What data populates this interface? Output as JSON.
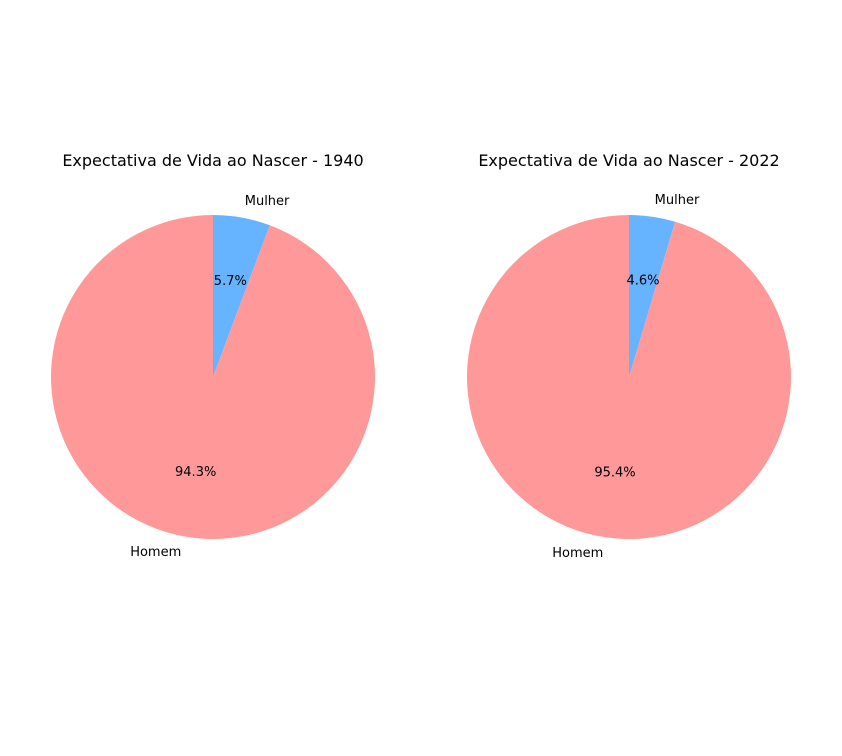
{
  "chart_data": [
    {
      "type": "pie",
      "title": "Expectativa de Vida ao Nascer - 1940",
      "categories": [
        "Mulher",
        "Homem"
      ],
      "values": [
        5.7,
        94.3
      ],
      "labels": [
        "5.7%",
        "94.3%"
      ],
      "colors": [
        "#66b3ff",
        "#ff9999"
      ],
      "start_angle_deg": 90,
      "direction": "clockwise"
    },
    {
      "type": "pie",
      "title": "Expectativa de Vida ao Nascer - 2022",
      "categories": [
        "Mulher",
        "Homem"
      ],
      "values": [
        4.6,
        95.4
      ],
      "labels": [
        "4.6%",
        "95.4%"
      ],
      "colors": [
        "#66b3ff",
        "#ff9999"
      ],
      "start_angle_deg": 90,
      "direction": "clockwise"
    }
  ]
}
